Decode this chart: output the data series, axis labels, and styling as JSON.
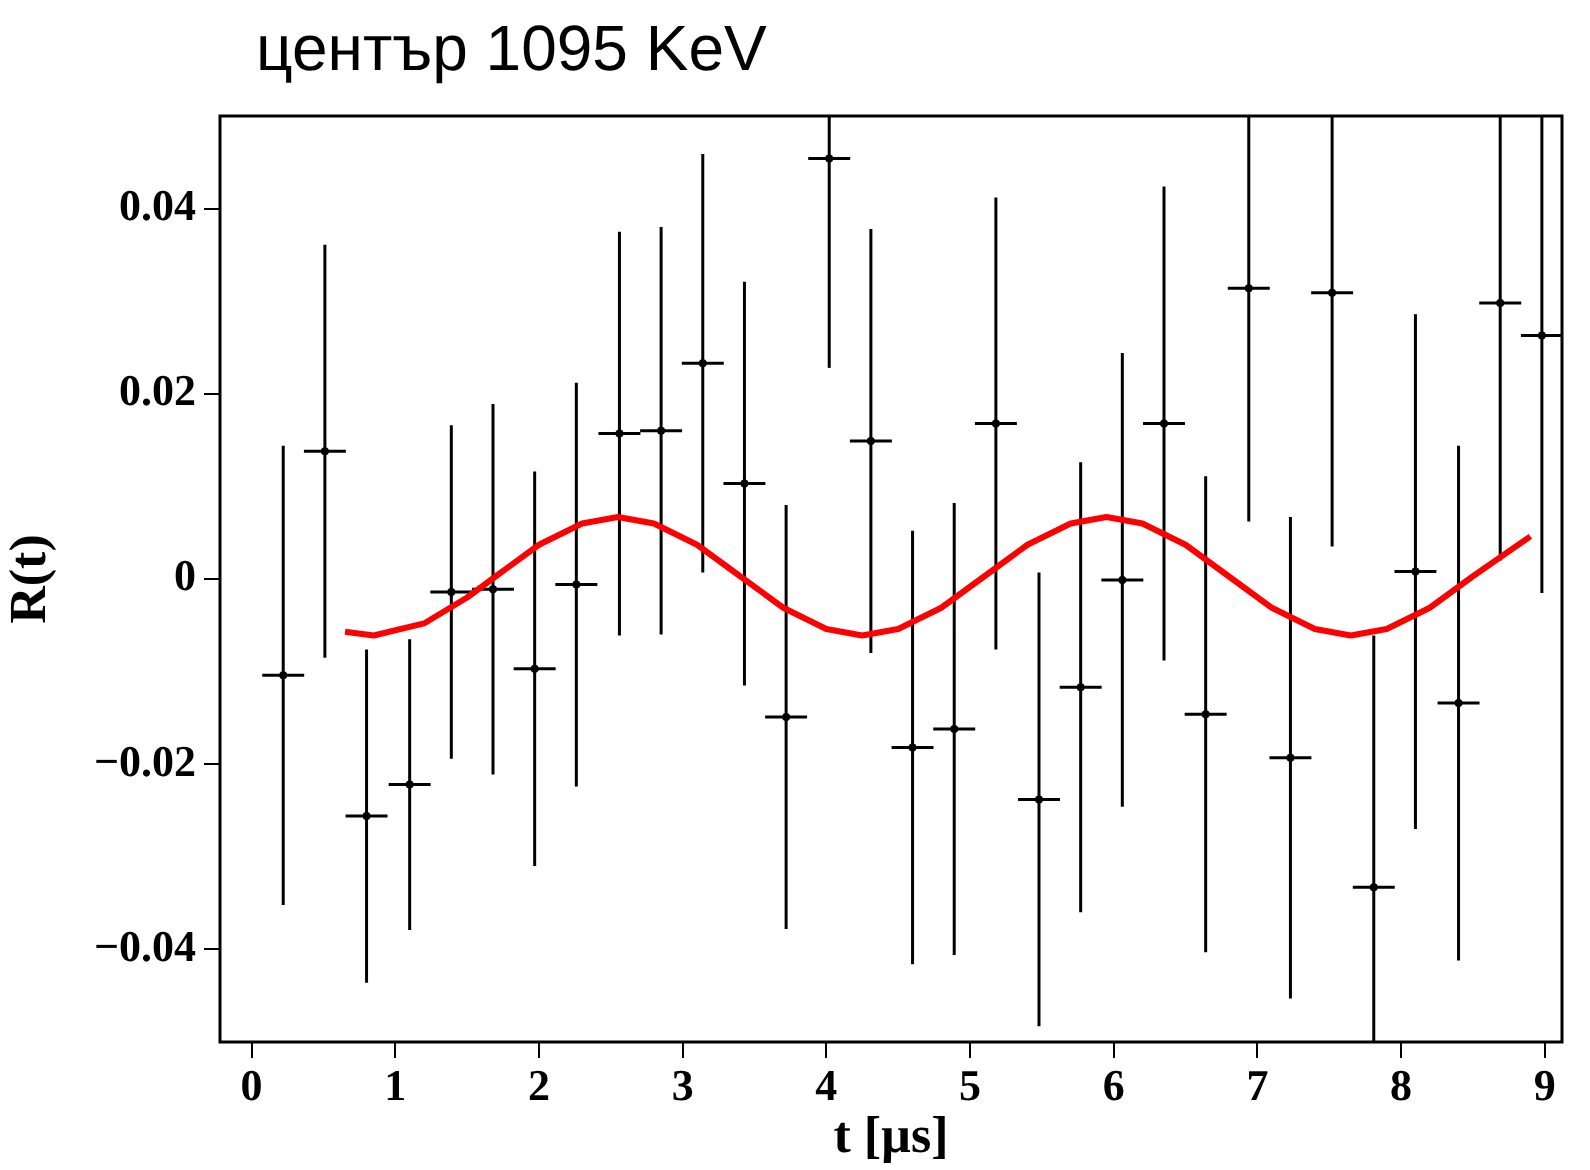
{
  "chart_data": {
    "type": "scatter",
    "title": "център 1095 KeV",
    "xlabel": "t [µs]",
    "ylabel": "R(t)",
    "xlim": [
      -0.22,
      9.12
    ],
    "xticks": [
      0,
      1,
      2,
      3,
      4,
      5,
      6,
      7,
      8,
      9
    ],
    "ylim": [
      -0.05,
      0.05
    ],
    "yticks": [
      -0.04,
      -0.02,
      0,
      0.02,
      0.04
    ],
    "grid": false,
    "legend": false,
    "series": [
      {
        "color": "#000000",
        "x": [
          0.22,
          0.51,
          0.8,
          1.1,
          1.39,
          1.68,
          1.97,
          2.26,
          2.56,
          2.85,
          3.14,
          3.43,
          3.72,
          4.02,
          4.31,
          4.6,
          4.89,
          5.18,
          5.48,
          5.77,
          6.06,
          6.35,
          6.64,
          6.94,
          7.23,
          7.52,
          7.81,
          8.1,
          8.4,
          8.69,
          8.98
        ],
        "values": [
          -0.0104,
          0.0138,
          -0.0256,
          -0.0222,
          -0.0014,
          -0.0011,
          -0.0097,
          -0.0006,
          0.0157,
          0.016,
          0.0233,
          0.0103,
          -0.0149,
          0.0454,
          0.0149,
          -0.0182,
          -0.0162,
          0.0168,
          -0.0238,
          -0.0117,
          -0.0001,
          0.0168,
          -0.0146,
          0.0314,
          -0.0193,
          0.0309,
          -0.0333,
          0.0008,
          -0.0134,
          0.0298,
          0.0263
        ],
        "errors": [
          0.0248,
          0.0223,
          0.018,
          0.0157,
          0.018,
          0.02,
          0.0213,
          0.0218,
          0.0218,
          0.022,
          0.0226,
          0.0218,
          0.0229,
          [
            0.0228,
            0.05
          ],
          0.0229,
          0.0234,
          0.0244,
          0.0244,
          0.0245,
          0.0243,
          0.0245,
          0.0256,
          0.0257,
          [
            0.0062,
            0.05
          ],
          0.026,
          [
            0.0035,
            0.05
          ],
          [
            -0.05,
            -0.0061
          ],
          0.0278,
          0.0278,
          [
            0.002,
            0.05
          ],
          [
            -0.0015,
            0.05
          ]
        ],
        "xerrors": [
          0.146,
          0.146,
          0.146,
          0.146,
          0.146,
          0.146,
          0.146,
          0.146,
          0.146,
          0.146,
          0.146,
          0.146,
          0.146,
          0.146,
          0.146,
          0.146,
          0.146,
          0.146,
          0.146,
          0.146,
          0.146,
          0.146,
          0.146,
          0.146,
          0.146,
          0.146,
          0.146,
          0.146,
          0.146,
          0.146,
          0.146
        ]
      },
      {
        "type": "line",
        "color": "#ff0000",
        "x": [
          0.65,
          0.85,
          1.2,
          1.5,
          1.7,
          2.0,
          2.3,
          2.55,
          2.8,
          3.1,
          3.4,
          3.7,
          4.0,
          4.25,
          4.5,
          4.8,
          5.1,
          5.4,
          5.7,
          5.95,
          6.2,
          6.5,
          6.8,
          7.1,
          7.4,
          7.65,
          7.9,
          8.2,
          8.5,
          8.9
        ],
        "values": [
          -0.0057,
          -0.0061,
          -0.0048,
          -0.002,
          0.0003,
          0.0037,
          0.006,
          0.0067,
          0.006,
          0.0037,
          0.0003,
          -0.0031,
          -0.0054,
          -0.0061,
          -0.0054,
          -0.0031,
          0.0003,
          0.0037,
          0.006,
          0.0067,
          0.006,
          0.0037,
          0.0003,
          -0.0031,
          -0.0054,
          -0.0061,
          -0.0054,
          -0.0031,
          0.0003,
          0.0046
        ]
      }
    ]
  }
}
